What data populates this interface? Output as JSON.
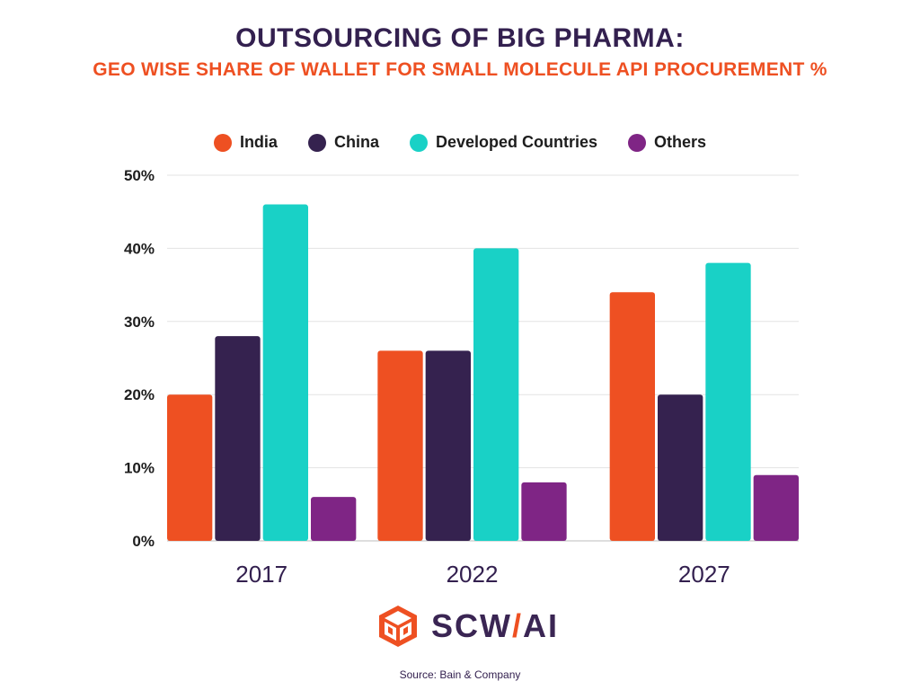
{
  "header": {
    "title": "OUTSOURCING OF BIG PHARMA:",
    "subtitle": "GEO WISE SHARE OF WALLET FOR SMALL MOLECULE API PROCUREMENT %"
  },
  "chart_data": {
    "type": "bar",
    "categories": [
      "2017",
      "2022",
      "2027"
    ],
    "series": [
      {
        "name": "India",
        "color": "#ee5022",
        "values": [
          20,
          26,
          34
        ]
      },
      {
        "name": "China",
        "color": "#35224f",
        "values": [
          28,
          26,
          20
        ]
      },
      {
        "name": "Developed Countries",
        "color": "#19d1c6",
        "values": [
          46,
          40,
          38
        ]
      },
      {
        "name": "Others",
        "color": "#7f2585",
        "values": [
          6,
          8,
          9
        ]
      }
    ],
    "ylim": [
      0,
      50
    ],
    "yticks": [
      0,
      10,
      20,
      30,
      40,
      50
    ],
    "ytick_labels": [
      "0%",
      "10%",
      "20%",
      "30%",
      "40%",
      "50%"
    ],
    "grid": true,
    "legend_position": "top"
  },
  "logo": {
    "text_left": "SCW",
    "text_slash": "/",
    "text_right": "AI",
    "icon": "box-cube-icon"
  },
  "source": "Source: Bain &  Company"
}
